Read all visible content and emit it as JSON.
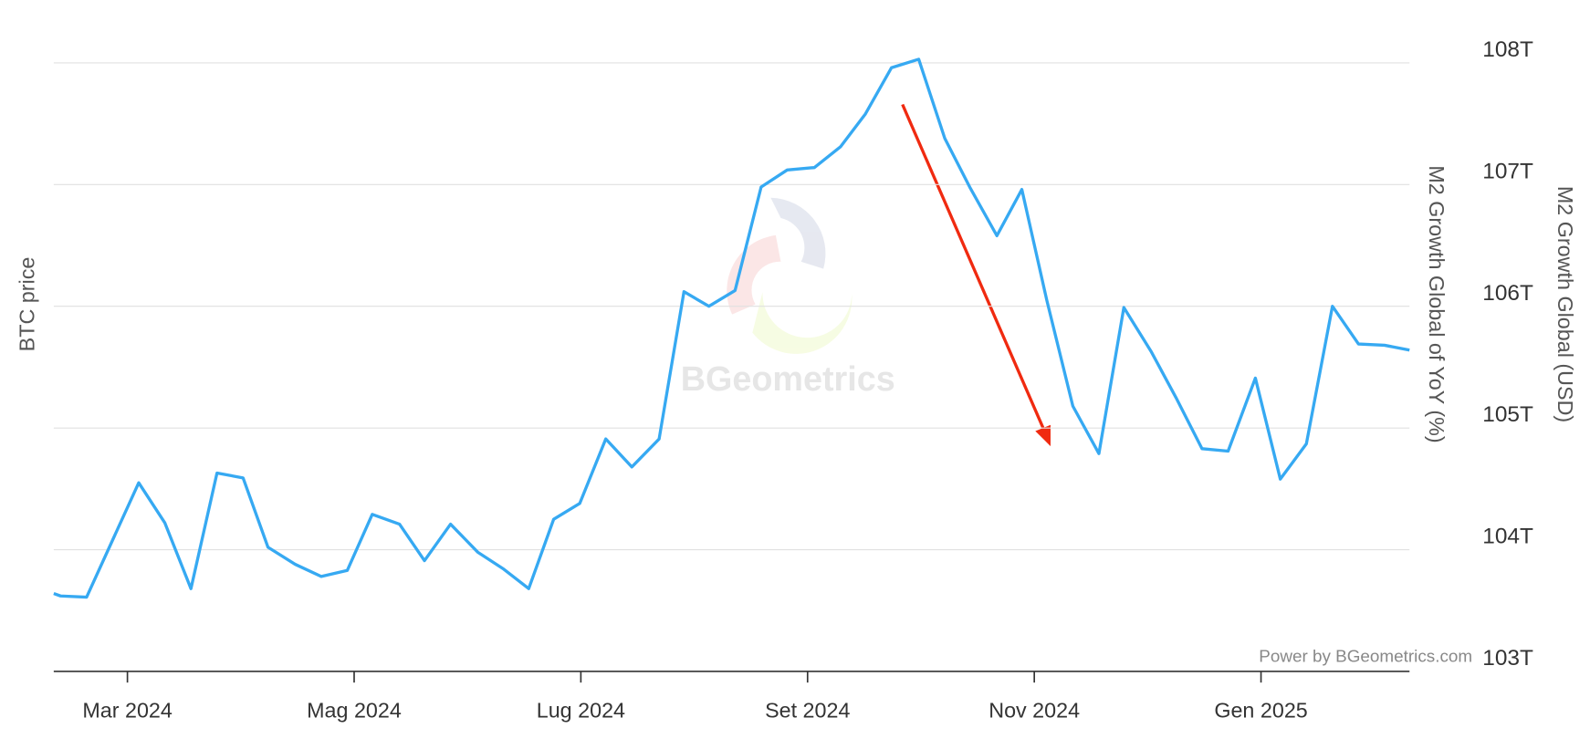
{
  "chart_data": {
    "type": "line",
    "left_axis_label": "BTC price",
    "y_axis_label": "M2 Growth Global (USD)",
    "y_axis_label_inner": "M2 Growth Global of YoY (%)",
    "credit": "Power by BGeometrics.com",
    "watermark": "BGeometrics",
    "color": "#36a9f2",
    "x": [
      1.35,
      1.41,
      1.64,
      1.87,
      2.1,
      2.33,
      2.56,
      2.79,
      3.02,
      3.24,
      3.48,
      3.71,
      3.94,
      4.16,
      4.4,
      4.62,
      4.85,
      5.09,
      5.32,
      5.54,
      5.76,
      5.99,
      6.22,
      6.45,
      6.69,
      6.91,
      7.13,
      7.36,
      7.59,
      7.82,
      8.06,
      8.29,
      8.51,
      8.74,
      8.98,
      9.21,
      9.43,
      9.67,
      9.89,
      10.11,
      10.34,
      10.57,
      10.79,
      11.03,
      11.25,
      11.48,
      11.71,
      11.95,
      12.17,
      12.4,
      12.63,
      12.86,
      13.09,
      13.31
    ],
    "values": [
      103.64,
      103.62,
      103.61,
      104.08,
      104.55,
      104.22,
      103.68,
      104.63,
      104.59,
      104.02,
      103.88,
      103.78,
      103.83,
      104.29,
      104.21,
      103.91,
      104.21,
      103.98,
      103.84,
      103.68,
      104.25,
      104.38,
      104.91,
      104.68,
      104.91,
      106.12,
      106.0,
      106.13,
      106.98,
      107.12,
      107.14,
      107.31,
      107.58,
      107.96,
      108.03,
      107.38,
      106.98,
      106.58,
      106.96,
      106.05,
      105.18,
      104.79,
      105.99,
      105.63,
      105.25,
      104.83,
      104.81,
      105.41,
      104.58,
      104.87,
      106.0,
      105.69,
      105.68,
      105.64
    ],
    "xlim": [
      1.35,
      13.31
    ],
    "xticks": [
      {
        "value": 2,
        "label": "Mar 2024"
      },
      {
        "value": 4,
        "label": "Mag 2024"
      },
      {
        "value": 6,
        "label": "Lug 2024"
      },
      {
        "value": 8,
        "label": "Set 2024"
      },
      {
        "value": 10,
        "label": "Nov 2024"
      },
      {
        "value": 12,
        "label": "Gen 2025"
      }
    ],
    "ylim": [
      103,
      108.2
    ],
    "yticks": [
      {
        "value": 103,
        "label": "103T"
      },
      {
        "value": 104,
        "label": "104T"
      },
      {
        "value": 105,
        "label": "105T"
      },
      {
        "value": 106,
        "label": "106T"
      },
      {
        "value": 107,
        "label": "107T"
      },
      {
        "value": 108,
        "label": "108T"
      }
    ],
    "grid": true
  }
}
